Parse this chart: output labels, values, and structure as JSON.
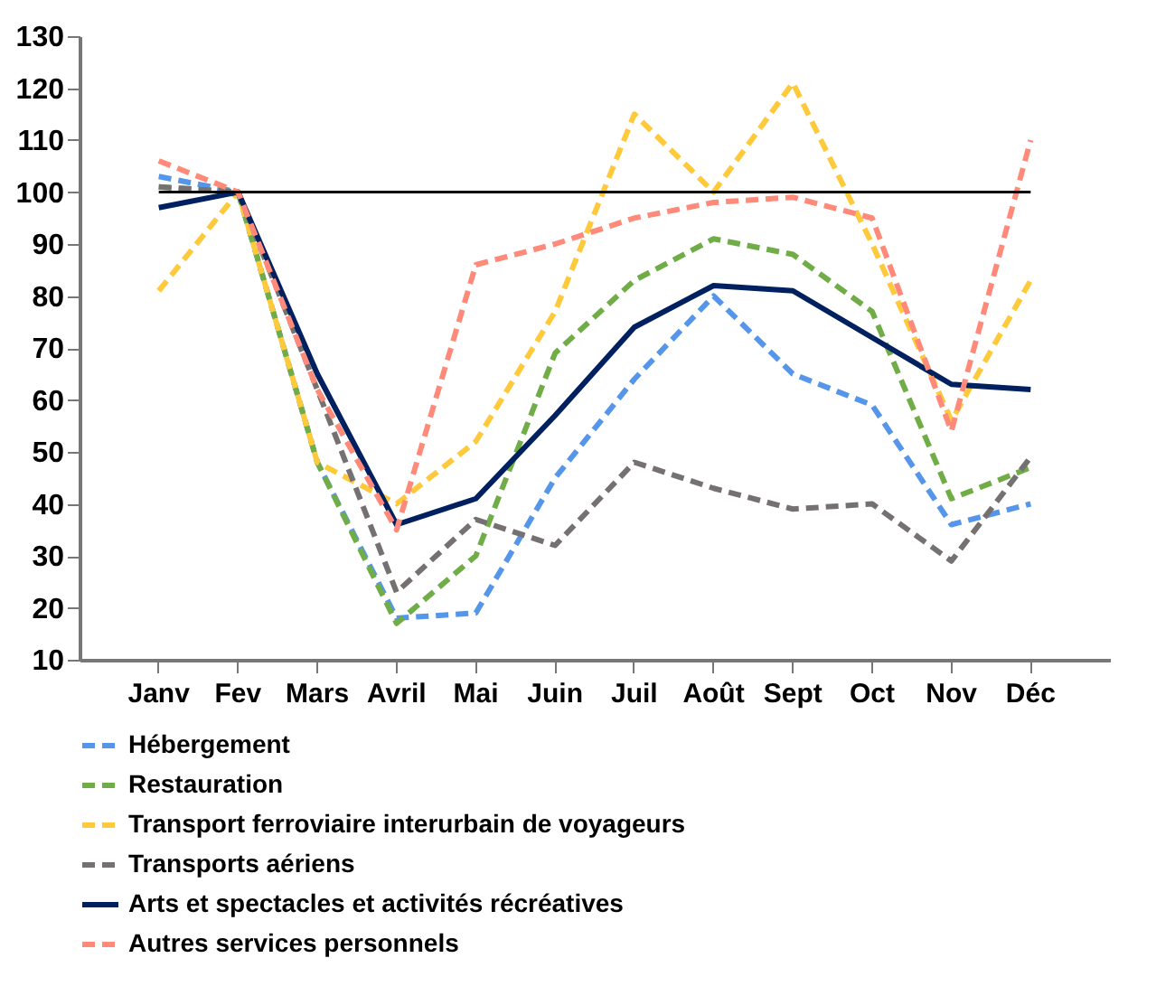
{
  "chart_data": {
    "type": "line",
    "categories": [
      "Janv",
      "Fev",
      "Mars",
      "Avril",
      "Mai",
      "Juin",
      "Juil",
      "Août",
      "Sept",
      "Oct",
      "Nov",
      "Déc"
    ],
    "ylim": [
      10,
      130
    ],
    "yticks": [
      10,
      20,
      30,
      40,
      50,
      60,
      70,
      80,
      90,
      100,
      110,
      120,
      130
    ],
    "grid": false,
    "legend": "bottom",
    "ref_lines": [
      {
        "axis": "y",
        "value": 100,
        "color": "#000000"
      }
    ],
    "series": [
      {
        "name": "Hébergement",
        "color": "#5596ea",
        "line_style": "dashed",
        "values": [
          103,
          100,
          48,
          18,
          19,
          45,
          64,
          80,
          65,
          59,
          36,
          40
        ]
      },
      {
        "name": "Restauration",
        "color": "#70ad47",
        "line_style": "dashed",
        "values": [
          101,
          100,
          48,
          17,
          30,
          69,
          83,
          91,
          88,
          77,
          41,
          47
        ]
      },
      {
        "name": "Transport ferroviaire interurbain de voyageurs",
        "color": "#ffc93c",
        "line_style": "dashed",
        "values": [
          81,
          100,
          48,
          40,
          52,
          77,
          115,
          100,
          121,
          90,
          56,
          83
        ]
      },
      {
        "name": "Transports aériens",
        "color": "#767171",
        "line_style": "dashed",
        "values": [
          101,
          100,
          62,
          23,
          37,
          32,
          48,
          43,
          39,
          40,
          29,
          49
        ]
      },
      {
        "name": "Arts et spectacles et activités récréatives",
        "color": "#002060",
        "line_style": "solid",
        "values": [
          97,
          100,
          65,
          36,
          41,
          57,
          74,
          82,
          81,
          72,
          63,
          62
        ]
      },
      {
        "name": "Autres services personnels",
        "color": "#ff8a7a",
        "line_style": "dashed",
        "values": [
          106,
          100,
          62,
          35,
          86,
          90,
          95,
          98,
          99,
          95,
          54,
          110
        ]
      }
    ]
  }
}
